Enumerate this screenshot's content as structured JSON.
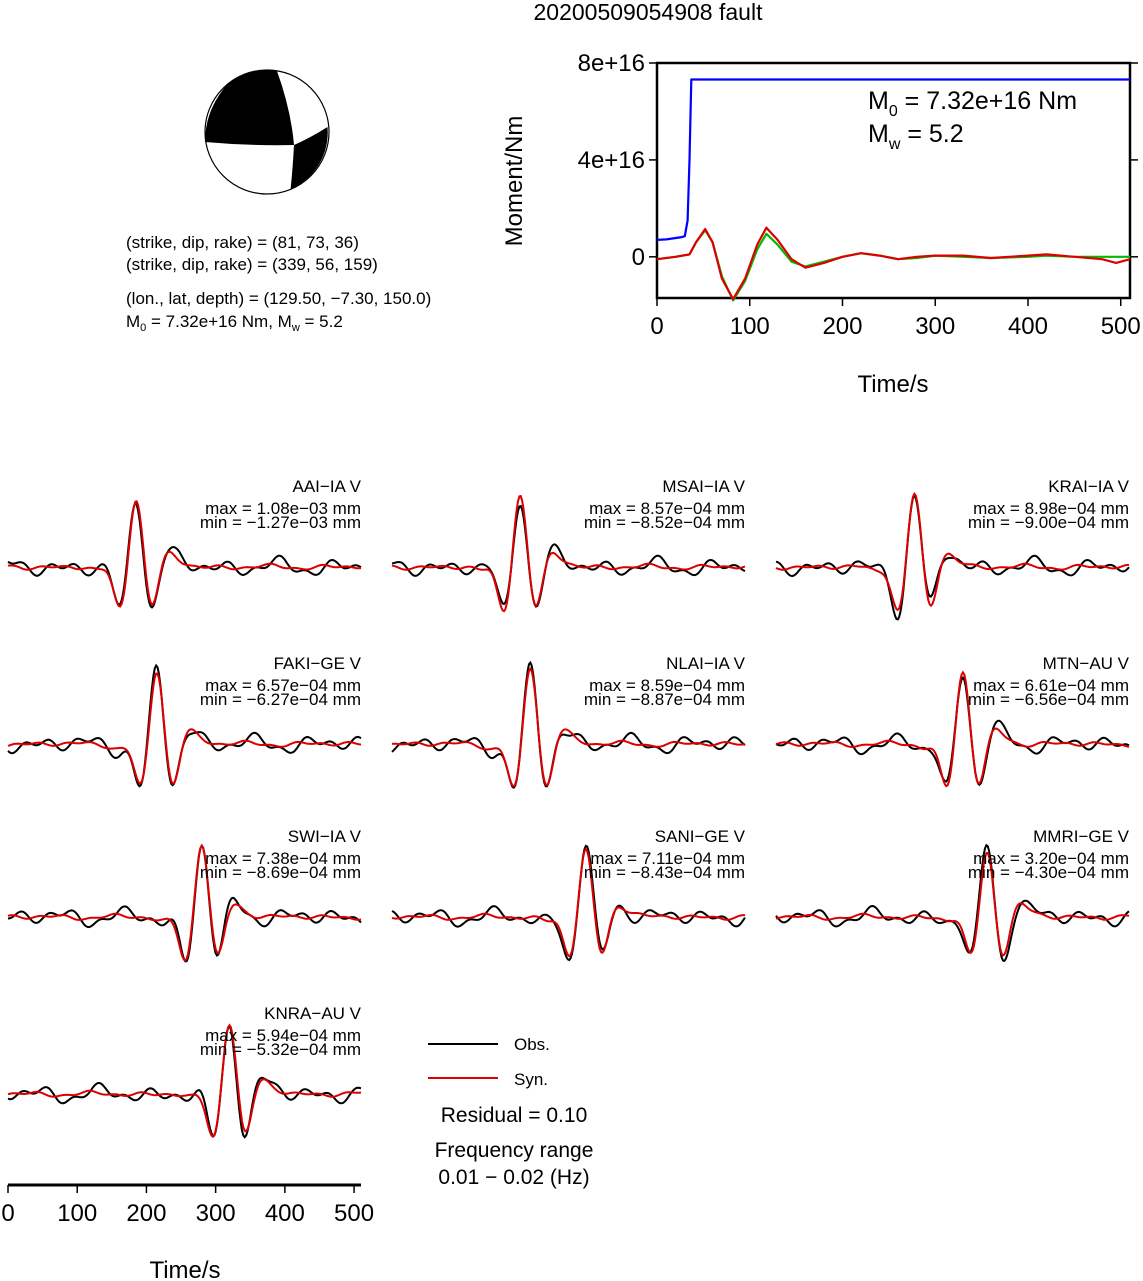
{
  "title": "20200509054908 fault",
  "info": {
    "line1": "(strike, dip, rake) = (81, 73, 36)",
    "line2": "(strike, dip, rake) = (339, 56, 159)",
    "line3": "(lon., lat, depth) = (129.50, −7.30, 150.0)",
    "line4_m0": "7.32e+16 Nm",
    "line4_mw": "5.2"
  },
  "chart_data": [
    {
      "type": "line",
      "xlabel": "Time/s",
      "ylabel": "Moment/Nm",
      "xlim": [
        0,
        510
      ],
      "ylim": [
        -1.7e+16,
        8e+16
      ],
      "xticks": [
        "0",
        "100",
        "200",
        "300",
        "400",
        "500"
      ],
      "yticks": [
        "0",
        "4e+16",
        "8e+16"
      ],
      "annotation": {
        "m0": "7.32e+16 Nm",
        "mw": "5.2"
      },
      "series": [
        {
          "color": "#0000ff",
          "x": [
            0,
            10,
            25,
            30,
            33,
            35,
            37,
            40,
            60,
            100,
            200,
            300,
            400,
            510
          ],
          "y": [
            7000000000000000.0,
            7200000000000000.0,
            8000000000000000.0,
            8500000000000000.0,
            1.5e+16,
            4e+16,
            7.32e+16,
            7.32e+16,
            7.32e+16,
            7.32e+16,
            7.32e+16,
            7.32e+16,
            7.32e+16,
            7.32e+16
          ]
        },
        {
          "color": "#00bb00",
          "x": [
            0,
            20,
            35,
            42,
            52,
            60,
            70,
            82,
            95,
            108,
            118,
            130,
            145,
            160,
            180,
            200,
            220,
            240,
            260,
            280,
            300,
            330,
            360,
            400,
            420,
            450,
            480,
            510
          ],
          "y": [
            -1000000000000000.0,
            0.0,
            1000000000000000.0,
            6000000000000000.0,
            1.1e+16,
            6000000000000000.0,
            -8000000000000000.0,
            -1.8e+16,
            -1e+16,
            3000000000000000.0,
            9500000000000000.0,
            5000000000000000.0,
            -2000000000000000.0,
            -4000000000000000.0,
            -2000000000000000.0,
            0.0,
            1500000000000000.0,
            500000000000000.0,
            -1000000000000000.0,
            -500000000000000.0,
            500000000000000.0,
            0.0,
            -500000000000000.0,
            0.0,
            500000000000000.0,
            0.0,
            0.0,
            0.0
          ]
        },
        {
          "color": "#dd0000",
          "x": [
            0,
            20,
            35,
            42,
            52,
            60,
            70,
            82,
            95,
            108,
            118,
            130,
            145,
            160,
            180,
            200,
            220,
            240,
            260,
            280,
            300,
            330,
            360,
            400,
            420,
            450,
            480,
            495,
            510
          ],
          "y": [
            -1000000000000000.0,
            0.0,
            1000000000000000.0,
            6000000000000000.0,
            1.15e+16,
            6000000000000000.0,
            -9000000000000000.0,
            -1.75e+16,
            -9000000000000000.0,
            5000000000000000.0,
            1.2e+16,
            7000000000000000.0,
            -1000000000000000.0,
            -4500000000000000.0,
            -2500000000000000.0,
            0.0,
            1500000000000000.0,
            500000000000000.0,
            -1000000000000000.0,
            0.0,
            500000000000000.0,
            500000000000000.0,
            -500000000000000.0,
            500000000000000.0,
            1000000000000000.0,
            0.0,
            -1000000000000000.0,
            -2500000000000000.0,
            -1000000000000000.0
          ]
        }
      ]
    },
    {
      "type": "line",
      "xlabel": "Time/s",
      "xlim": [
        0,
        510
      ],
      "xticks": [
        "0",
        "100",
        "200",
        "300",
        "400",
        "500"
      ],
      "legend": {
        "obs": "Obs.",
        "syn": "Syn."
      },
      "residual": "Residual = 0.10",
      "freq_label": "Frequency range",
      "freq_value": "0.01 − 0.02 (Hz)",
      "stations": [
        {
          "name": "AAI−IA V",
          "max": "max = 1.08e−03 mm",
          "min": "min = −1.27e−03 mm",
          "center": 185,
          "obs_seed": 1.7,
          "syn_amp": 0.95
        },
        {
          "name": "MSAI−IA V",
          "max": "max = 8.57e−04 mm",
          "min": "min = −8.52e−04 mm",
          "center": 185,
          "obs_seed": 2.3,
          "syn_amp": 1.0
        },
        {
          "name": "KRAI−IA V",
          "max": "max = 8.98e−04 mm",
          "min": "min = −9.00e−04 mm",
          "center": 200,
          "obs_seed": 3.1,
          "syn_amp": 1.0
        },
        {
          "name": "FAKI−GE V",
          "max": "max = 6.57e−04 mm",
          "min": "min = −6.27e−04 mm",
          "center": 215,
          "obs_seed": 4.4,
          "syn_amp": 1.0
        },
        {
          "name": "NLAI−IA V",
          "max": "max = 8.59e−04 mm",
          "min": "min = −8.87e−04 mm",
          "center": 200,
          "obs_seed": 5.2,
          "syn_amp": 1.05
        },
        {
          "name": "MTN−AU V",
          "max": "max = 6.61e−04 mm",
          "min": "min = −6.56e−04 mm",
          "center": 270,
          "obs_seed": 6.8,
          "syn_amp": 1.0
        },
        {
          "name": "SWI−IA V",
          "max": "max = 7.38e−04 mm",
          "min": "min = −8.69e−04 mm",
          "center": 280,
          "obs_seed": 7.3,
          "syn_amp": 1.0
        },
        {
          "name": "SANI−GE V",
          "max": "max = 7.11e−04 mm",
          "min": "min = −8.43e−04 mm",
          "center": 280,
          "obs_seed": 8.9,
          "syn_amp": 0.9
        },
        {
          "name": "MMRI−GE V",
          "max": "max = 3.20e−04 mm",
          "min": "min = −4.30e−04 mm",
          "center": 305,
          "obs_seed": 9.5,
          "syn_amp": 0.9
        },
        {
          "name": "KNRA−AU V",
          "max": "max = 5.94e−04 mm",
          "min": "min = −5.32e−04 mm",
          "center": 320,
          "obs_seed": 10.1,
          "syn_amp": 1.0
        }
      ]
    }
  ]
}
